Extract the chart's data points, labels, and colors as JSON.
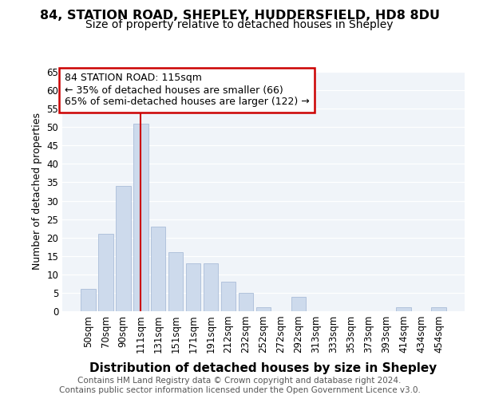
{
  "title1": "84, STATION ROAD, SHEPLEY, HUDDERSFIELD, HD8 8DU",
  "title2": "Size of property relative to detached houses in Shepley",
  "xlabel": "Distribution of detached houses by size in Shepley",
  "ylabel": "Number of detached properties",
  "footer1": "Contains HM Land Registry data © Crown copyright and database right 2024.",
  "footer2": "Contains public sector information licensed under the Open Government Licence v3.0.",
  "categories": [
    "50sqm",
    "70sqm",
    "90sqm",
    "111sqm",
    "131sqm",
    "151sqm",
    "171sqm",
    "191sqm",
    "212sqm",
    "232sqm",
    "252sqm",
    "272sqm",
    "292sqm",
    "313sqm",
    "333sqm",
    "353sqm",
    "373sqm",
    "393sqm",
    "414sqm",
    "434sqm",
    "454sqm"
  ],
  "values": [
    6,
    21,
    34,
    51,
    23,
    16,
    13,
    13,
    8,
    5,
    1,
    0,
    4,
    0,
    0,
    0,
    0,
    0,
    1,
    0,
    1
  ],
  "bar_color": "#cddaec",
  "bar_edge_color": "#aabdd8",
  "vline_x_index": 3,
  "vline_color": "#cc0000",
  "annotation_line1": "84 STATION ROAD: 115sqm",
  "annotation_line2": "← 35% of detached houses are smaller (66)",
  "annotation_line3": "65% of semi-detached houses are larger (122) →",
  "annotation_box_color": "#cc0000",
  "ylim": [
    0,
    65
  ],
  "yticks": [
    0,
    5,
    10,
    15,
    20,
    25,
    30,
    35,
    40,
    45,
    50,
    55,
    60,
    65
  ],
  "background_color": "#ffffff",
  "plot_bg_color": "#f0f4f9",
  "grid_color": "#ffffff",
  "title_fontsize": 11.5,
  "subtitle_fontsize": 10,
  "xlabel_fontsize": 11,
  "ylabel_fontsize": 9,
  "tick_fontsize": 8.5,
  "ann_fontsize": 9,
  "footer_fontsize": 7.5
}
